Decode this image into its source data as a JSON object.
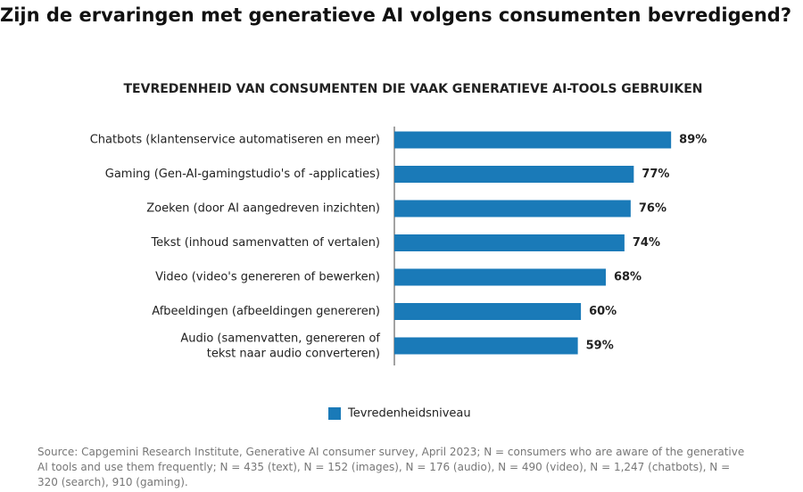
{
  "chart_data": {
    "type": "bar",
    "title": "Zijn de ervaringen met generatieve AI volgens consumenten bevredigend?",
    "subtitle": "TEVREDENHEID VAN CONSUMENTEN DIE VAAK GENERATIEVE AI-TOOLS GEBRUIKEN",
    "categories": [
      "Chatbots (klantenservice automatiseren en meer)",
      "Gaming (Gen-AI-gamingstudio's of -applicaties)",
      "Zoeken (door AI aangedreven inzichten)",
      "Tekst (inhoud samenvatten of vertalen)",
      "Video (video's genereren of bewerken)",
      "Afbeeldingen (afbeeldingen genereren)",
      "Audio (samenvatten, genereren of\ntekst naar audio converteren)"
    ],
    "series": [
      {
        "name": "Tevredenheidsniveau",
        "color": "#1a7ab8",
        "values": [
          89,
          77,
          76,
          74,
          68,
          60,
          59
        ],
        "value_labels": [
          "89%",
          "77%",
          "76%",
          "74%",
          "68%",
          "60%",
          "59%"
        ]
      }
    ],
    "source": "Source: Capgemini Research Institute, Generative AI consumer survey, April 2023; N = consumers who are aware of the generative AI tools and use them frequently; N = 435 (text), N = 152 (images), N = 176 (audio), N = 490 (video), N = 1,247 (chatbots), N = 320 (search), 910 (gaming)."
  }
}
